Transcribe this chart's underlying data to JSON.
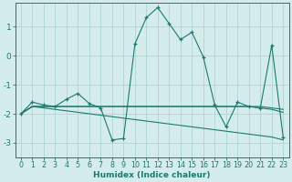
{
  "xlabel": "Humidex (Indice chaleur)",
  "background_color": "#d5ecec",
  "grid_color": "#afd4d4",
  "line_color": "#1c7a6e",
  "xlim": [
    -0.5,
    23.5
  ],
  "ylim": [
    -3.5,
    1.8
  ],
  "yticks": [
    -3,
    -2,
    -1,
    0,
    1
  ],
  "xticks": [
    0,
    1,
    2,
    3,
    4,
    5,
    6,
    7,
    8,
    9,
    10,
    11,
    12,
    13,
    14,
    15,
    16,
    17,
    18,
    19,
    20,
    21,
    22,
    23
  ],
  "x": [
    0,
    1,
    2,
    3,
    4,
    5,
    6,
    7,
    8,
    9,
    10,
    11,
    12,
    13,
    14,
    15,
    16,
    17,
    18,
    19,
    20,
    21,
    22,
    23
  ],
  "y_main": [
    -2.0,
    -1.6,
    -1.7,
    -1.75,
    -1.5,
    -1.3,
    -1.65,
    -1.8,
    -2.9,
    -2.85,
    0.4,
    1.3,
    1.65,
    1.1,
    0.55,
    0.8,
    -0.05,
    -1.7,
    -2.45,
    -1.6,
    -1.75,
    -1.8,
    0.35,
    -2.8
  ],
  "y_trend1": [
    -2.0,
    -1.75,
    -1.75,
    -1.75,
    -1.75,
    -1.75,
    -1.75,
    -1.75,
    -1.75,
    -1.75,
    -1.75,
    -1.75,
    -1.75,
    -1.75,
    -1.75,
    -1.75,
    -1.75,
    -1.75,
    -1.75,
    -1.75,
    -1.75,
    -1.75,
    -1.8,
    -1.85
  ],
  "y_trend2": [
    -2.0,
    -1.75,
    -1.75,
    -1.75,
    -1.75,
    -1.75,
    -1.75,
    -1.75,
    -1.75,
    -1.75,
    -1.75,
    -1.75,
    -1.75,
    -1.75,
    -1.75,
    -1.75,
    -1.75,
    -1.75,
    -1.75,
    -1.75,
    -1.75,
    -1.8,
    -1.85,
    -1.95
  ],
  "y_trend3": [
    -2.0,
    -1.75,
    -1.8,
    -1.85,
    -1.9,
    -1.95,
    -2.0,
    -2.05,
    -2.1,
    -2.15,
    -2.2,
    -2.25,
    -2.3,
    -2.35,
    -2.4,
    -2.45,
    -2.5,
    -2.55,
    -2.6,
    -2.65,
    -2.7,
    -2.75,
    -2.8,
    -2.9
  ]
}
